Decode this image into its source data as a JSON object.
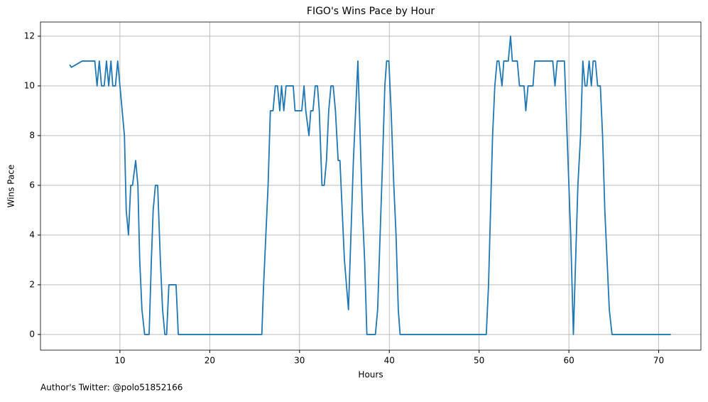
{
  "chart_data": {
    "type": "line",
    "title": "FIGO's Wins Pace by Hour",
    "x_label": "Hours",
    "y_label": "Wins Pace",
    "footnote": "Author's Twitter: @polo51852166",
    "x": [
      4.4,
      4.6,
      5.8,
      7.2,
      7.45,
      7.7,
      7.95,
      8.25,
      8.5,
      8.75,
      9.0,
      9.2,
      9.5,
      9.75,
      10,
      10.5,
      10.7,
      10.95,
      11.2,
      11.4,
      11.75,
      12,
      12.2,
      12.45,
      12.75,
      13.25,
      13.5,
      13.7,
      13.95,
      14.2,
      14.5,
      14.75,
      15,
      15.2,
      15.45,
      16.25,
      16.5,
      25.8,
      26,
      26.5,
      26.75,
      27.05,
      27.3,
      27.55,
      27.8,
      28,
      28.25,
      28.5,
      29.3,
      29.5,
      30.25,
      30.5,
      30.7,
      31.05,
      31.25,
      31.5,
      31.75,
      32,
      32.2,
      32.5,
      32.75,
      33,
      33.25,
      33.5,
      33.75,
      34,
      34.3,
      34.5,
      35,
      35.45,
      36,
      36.5,
      37,
      37.25,
      37.5,
      38.45,
      38.7,
      39.25,
      39.5,
      39.7,
      39.95,
      40.2,
      40.5,
      40.75,
      41,
      41.2,
      50.8,
      51.05,
      51.5,
      51.75,
      52,
      52.2,
      52.55,
      52.75,
      53.25,
      53.5,
      53.7,
      54.25,
      54.5,
      55,
      55.2,
      55.45,
      56,
      56.2,
      58.2,
      58.45,
      58.7,
      59.5,
      59.7,
      60.2,
      60.5,
      61,
      61.3,
      61.55,
      61.8,
      62,
      62.25,
      62.5,
      62.7,
      62.95,
      63.2,
      63.5,
      63.75,
      64,
      64.5,
      64.8,
      71.35
    ],
    "series": [
      {
        "color": "#1f77b4",
        "values": [
          10.85,
          10.75,
          11,
          11,
          10,
          11,
          10,
          10,
          11,
          10,
          11,
          10,
          10,
          11,
          10,
          8,
          5,
          4,
          6,
          6,
          7,
          6,
          3,
          1,
          0,
          0,
          3,
          5,
          6,
          6,
          3,
          1,
          0,
          0,
          2,
          2,
          0,
          0,
          2,
          6,
          9,
          9,
          10,
          10,
          9,
          10,
          9,
          10,
          10,
          9,
          9,
          10,
          9,
          8,
          9,
          9,
          10,
          10,
          9,
          6,
          6,
          7,
          9,
          10,
          10,
          9,
          7,
          7,
          3,
          1,
          7,
          11,
          5,
          3,
          0,
          0,
          1,
          7,
          10,
          11,
          11,
          9,
          6,
          4,
          1,
          0,
          0,
          2,
          8,
          10,
          11,
          11,
          10,
          11,
          11,
          12,
          11,
          11,
          10,
          10,
          9,
          10,
          10,
          11,
          11,
          10,
          11,
          11,
          9,
          4,
          0,
          6,
          8,
          11,
          10,
          10,
          11,
          10,
          11,
          11,
          10,
          10,
          8,
          5,
          1,
          0,
          0
        ]
      }
    ],
    "xlim": [
      1.15,
      74.7
    ],
    "ylim": [
      -0.63,
      12.57
    ],
    "xticks": [
      10,
      20,
      30,
      40,
      50,
      60,
      70
    ],
    "yticks": [
      0,
      2,
      4,
      6,
      8,
      10,
      12
    ],
    "grid": true
  }
}
